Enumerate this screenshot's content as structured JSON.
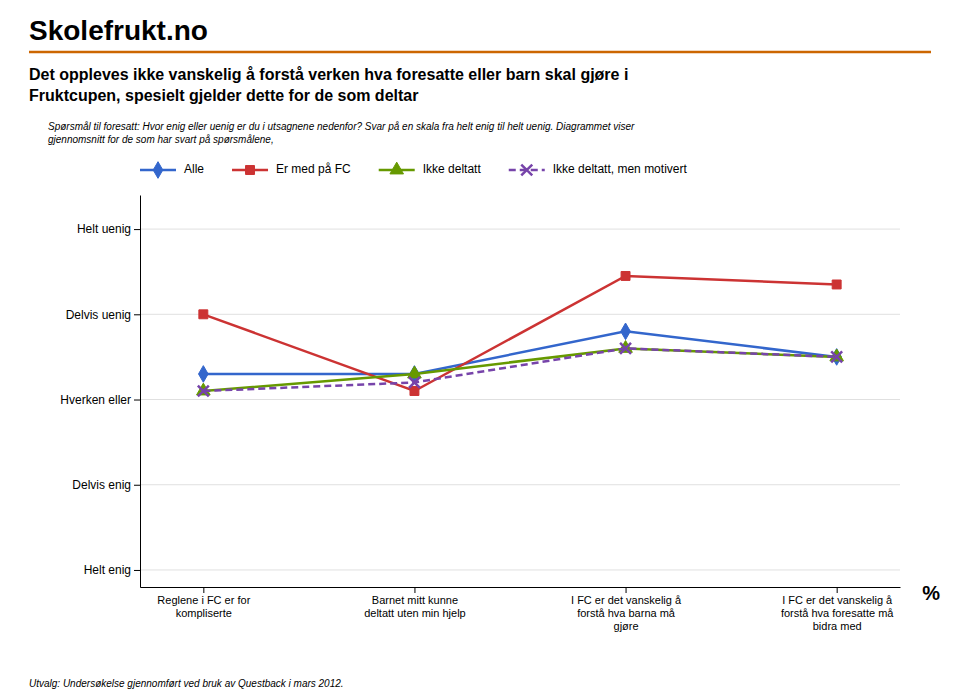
{
  "chart_data": {
    "type": "line",
    "header": "Skolefrukt.no",
    "title": "Det oppleves ikke vanskelig å forstå verken hva foresatte eller barn skal gjøre i\nFruktcupen, spesielt gjelder dette for de som deltar",
    "subtitle": "Spørsmål  til foresatt: Hvor enig eller uenig er du i utsagnene nedenfor? Svar på en skala fra helt enig til helt uenig. Diagrammet viser\ngjennomsnitt for de som har svart på spørsmålene,",
    "footer": "Utvalg: Undersøkelse gjennomført ved bruk av Questback i mars 2012.",
    "annotations": [
      "%"
    ],
    "categories": [
      "Reglene i FC er for\nkompliserte",
      "Barnet mitt kunne\ndeltatt uten min hjelp",
      "I FC er det vanskelig å\nforstå hva barna må\ngjøre",
      "I FC er det vanskelig å\nforstå hva foresatte må\nbidra med"
    ],
    "series": [
      {
        "name": "Alle",
        "color": "#3366CC",
        "marker": "diamond",
        "line_style": "solid",
        "values": [
          3.3,
          3.3,
          3.8,
          3.5
        ]
      },
      {
        "name": "Er med på FC",
        "color": "#CC3333",
        "marker": "square",
        "line_style": "solid",
        "values": [
          4.0,
          3.1,
          4.45,
          4.35
        ]
      },
      {
        "name": "Ikke deltatt",
        "color": "#669900",
        "marker": "triangle",
        "line_style": "solid",
        "values": [
          3.1,
          3.3,
          3.6,
          3.5
        ]
      },
      {
        "name": "Ikke deltatt, men motivert",
        "color": "#7744AA",
        "marker": "x",
        "line_style": "dashed",
        "values": [
          3.1,
          3.2,
          3.6,
          3.5
        ]
      }
    ],
    "ylim": [
      0.8,
      5.4
    ],
    "yticks": [
      {
        "value": 1,
        "label": "Helt enig"
      },
      {
        "value": 2,
        "label": "Delvis enig"
      },
      {
        "value": 3,
        "label": "Hverken eller"
      },
      {
        "value": 4,
        "label": "Delvis uenig"
      },
      {
        "value": 5,
        "label": "Helt uenig"
      }
    ],
    "grid": true,
    "legend": "top"
  }
}
